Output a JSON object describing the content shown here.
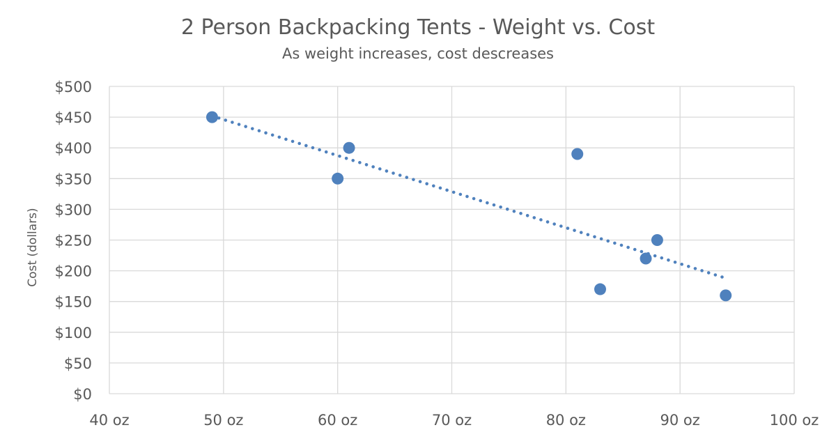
{
  "chart_data": {
    "type": "scatter",
    "title": "2 Person Backpacking Tents - Weight vs. Cost",
    "subtitle": "As weight increases, cost descreases",
    "xlabel": "",
    "ylabel": "Cost (dollars)",
    "xlim": [
      40,
      100
    ],
    "ylim": [
      0,
      500
    ],
    "x_ticks": [
      40,
      50,
      60,
      70,
      80,
      90,
      100
    ],
    "x_tick_labels": [
      "40 oz",
      "50 oz",
      "60 oz",
      "70 oz",
      "80 oz",
      "90 oz",
      "100 oz"
    ],
    "y_ticks": [
      0,
      50,
      100,
      150,
      200,
      250,
      300,
      350,
      400,
      450,
      500
    ],
    "y_tick_labels": [
      "$0",
      "$50",
      "$100",
      "$150",
      "$200",
      "$250",
      "$300",
      "$350",
      "$400",
      "$450",
      "$500"
    ],
    "grid": true,
    "legend": false,
    "series": [
      {
        "points": [
          {
            "x": 49,
            "y": 450
          },
          {
            "x": 60,
            "y": 350
          },
          {
            "x": 61,
            "y": 400
          },
          {
            "x": 81,
            "y": 390
          },
          {
            "x": 83,
            "y": 170
          },
          {
            "x": 87,
            "y": 220
          },
          {
            "x": 88,
            "y": 250
          },
          {
            "x": 94,
            "y": 160
          }
        ],
        "color": "#4f81bd",
        "trendline": {
          "type": "linear",
          "style": "dotted",
          "from": {
            "x": 49,
            "y": 452
          },
          "to": {
            "x": 94,
            "y": 188
          }
        }
      }
    ]
  },
  "colors": {
    "marker": "#4f81bd",
    "trendline": "#4f81bd",
    "grid": "#d9d9d9",
    "text": "#595959"
  }
}
